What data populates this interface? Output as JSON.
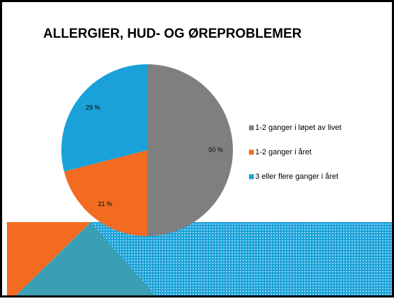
{
  "chart_data": {
    "type": "pie",
    "title": "ALLERGIER, HUD- OG ØREPROBLEMER",
    "categories": [
      "1-2 ganger i løpet av livet",
      "1-2 ganger i året",
      "3 eller flere ganger i året"
    ],
    "values": [
      50,
      21,
      29
    ],
    "value_labels": [
      "50 %",
      "21 %",
      "29 %"
    ],
    "colors": [
      "#7f7f7f",
      "#f26b21",
      "#1aa1d9"
    ],
    "legend": "right"
  }
}
